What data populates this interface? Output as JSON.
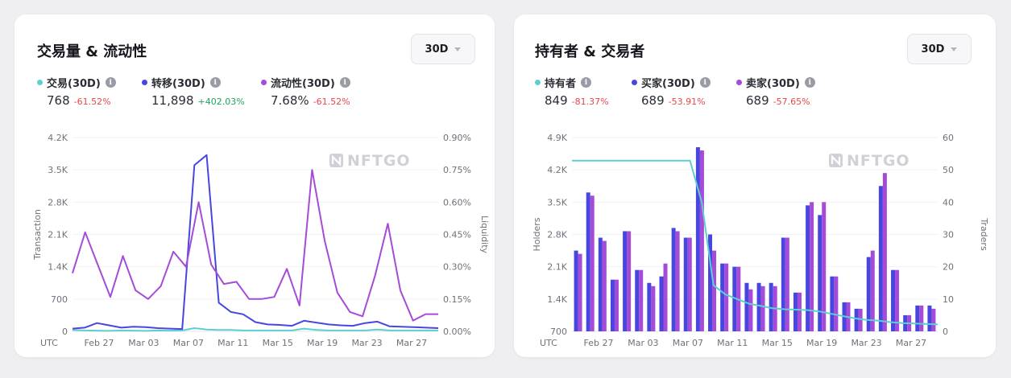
{
  "colors": {
    "teal": "#5ecfd0",
    "blue": "#4747e0",
    "purple": "#a64bd8",
    "negative": "#e5484d",
    "positive": "#22a45d"
  },
  "left_card": {
    "title": "交易量 & 流动性",
    "period": "30D",
    "legend": [
      {
        "label": "交易(30D)",
        "value": "768",
        "change": "-61.52%",
        "color": "#5ecfd0",
        "change_type": "neg"
      },
      {
        "label": "转移(30D)",
        "value": "11,898",
        "change": "+402.03%",
        "color": "#4747e0",
        "change_type": "pos"
      },
      {
        "label": "流动性(30D)",
        "value": "7.68%",
        "change": "-61.52%",
        "color": "#a64bd8",
        "change_type": "neg"
      }
    ]
  },
  "right_card": {
    "title": "持有者 & 交易者",
    "period": "30D",
    "legend": [
      {
        "label": "持有者",
        "value": "849",
        "change": "-81.37%",
        "color": "#5ecfd0",
        "change_type": "neg"
      },
      {
        "label": "买家(30D)",
        "value": "689",
        "change": "-53.91%",
        "color": "#4747e0",
        "change_type": "neg"
      },
      {
        "label": "卖家(30D)",
        "value": "689",
        "change": "-57.65%",
        "color": "#a64bd8",
        "change_type": "neg"
      }
    ]
  },
  "watermark": "NFTGO",
  "chart_data": [
    {
      "type": "line",
      "x_tz_label": "UTC",
      "x_ticks": [
        "Feb 27",
        "Mar 03",
        "Mar 07",
        "Mar 11",
        "Mar 15",
        "Mar 19",
        "Mar 23",
        "Mar 27"
      ],
      "y_left": {
        "label": "Transaction",
        "ticks": [
          "0",
          "700",
          "1.4K",
          "2.1K",
          "2.8K",
          "3.5K",
          "4.2K"
        ],
        "range": [
          0,
          4200
        ]
      },
      "y_right": {
        "label": "Liquidity",
        "ticks": [
          "0.00%",
          "0.15%",
          "0.30%",
          "0.45%",
          "0.60%",
          "0.75%",
          "0.90%"
        ],
        "range": [
          0,
          0.9
        ]
      },
      "series": [
        {
          "name": "交易(30D)",
          "axis": "left",
          "color": "#5ecfd0",
          "values": [
            30,
            20,
            15,
            10,
            20,
            15,
            10,
            20,
            15,
            20,
            70,
            40,
            30,
            30,
            20,
            20,
            20,
            20,
            20,
            60,
            30,
            20,
            20,
            20,
            20,
            40,
            20,
            20,
            20,
            20,
            20
          ]
        },
        {
          "name": "转移(30D)",
          "axis": "left",
          "color": "#4747e0",
          "values": [
            60,
            80,
            180,
            130,
            80,
            100,
            90,
            70,
            60,
            50,
            3600,
            3820,
            620,
            420,
            370,
            200,
            150,
            140,
            120,
            230,
            190,
            150,
            130,
            120,
            180,
            210,
            110,
            100,
            90,
            80,
            70
          ]
        },
        {
          "name": "流动性(30D)",
          "axis": "right",
          "color": "#a64bd8",
          "values": [
            0.27,
            0.46,
            0.31,
            0.16,
            0.35,
            0.19,
            0.15,
            0.21,
            0.37,
            0.3,
            0.6,
            0.31,
            0.22,
            0.23,
            0.15,
            0.15,
            0.16,
            0.29,
            0.12,
            0.75,
            0.42,
            0.18,
            0.09,
            0.07,
            0.26,
            0.5,
            0.19,
            0.05,
            0.08,
            0.08
          ]
        }
      ]
    },
    {
      "type": "bar",
      "x_tz_label": "UTC",
      "x_ticks": [
        "Feb 27",
        "Mar 03",
        "Mar 07",
        "Mar 11",
        "Mar 15",
        "Mar 19",
        "Mar 23",
        "Mar 27"
      ],
      "y_left": {
        "label": "Holders",
        "ticks": [
          "700",
          "1.4K",
          "2.1K",
          "2.8K",
          "3.5K",
          "4.2K",
          "4.9K"
        ],
        "range": [
          700,
          4900
        ]
      },
      "y_right": {
        "label": "Traders",
        "ticks": [
          "0",
          "10",
          "20",
          "30",
          "40",
          "50",
          "60"
        ],
        "range": [
          0,
          60
        ]
      },
      "series": [
        {
          "name": "持有者",
          "kind": "line",
          "axis": "left",
          "color": "#5ecfd0",
          "values": [
            4400,
            4400,
            4400,
            4400,
            4400,
            4400,
            4400,
            4400,
            4400,
            4400,
            4400,
            3500,
            1700,
            1500,
            1400,
            1300,
            1250,
            1200,
            1180,
            1170,
            1160,
            1130,
            1080,
            1030,
            980,
            950,
            930,
            900,
            880,
            870,
            860,
            850
          ]
        },
        {
          "name": "买家(30D)",
          "kind": "bar",
          "axis": "right",
          "color": "#4747e0",
          "values": [
            25,
            43,
            29,
            16,
            31,
            19,
            15,
            17,
            32,
            29,
            57,
            30,
            21,
            20,
            15,
            15,
            15,
            29,
            12,
            39,
            36,
            17,
            9,
            7,
            23,
            45,
            19,
            5,
            8,
            8
          ]
        },
        {
          "name": "卖家(30D)",
          "kind": "bar",
          "axis": "right",
          "color": "#a64bd8",
          "values": [
            24,
            42,
            28,
            16,
            31,
            19,
            14,
            21,
            31,
            29,
            56,
            25,
            21,
            20,
            13,
            14,
            14,
            29,
            12,
            40,
            40,
            17,
            9,
            7,
            25,
            49,
            19,
            5,
            8,
            7
          ]
        }
      ]
    }
  ]
}
